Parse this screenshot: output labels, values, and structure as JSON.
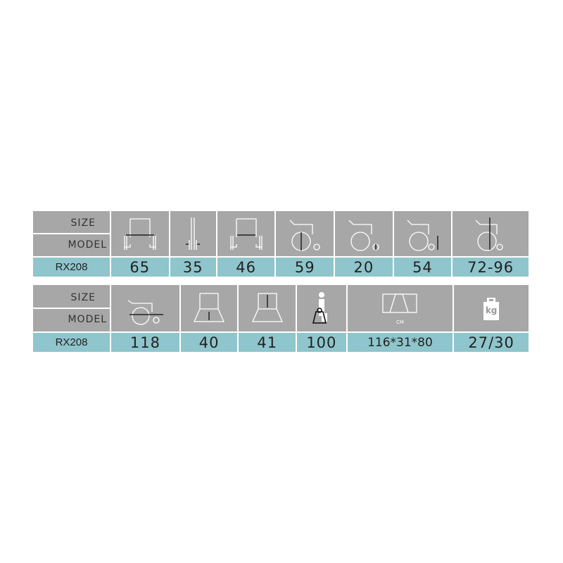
{
  "colors": {
    "header_bg": "#a7a7a7",
    "value_bg": "#8fc5cc",
    "icon": "#ffffff"
  },
  "table1": {
    "size_label": "SIZE",
    "model_label": "MODEL",
    "model": "RX208",
    "columns": [
      {
        "icon": "overall-width-icon",
        "value": "65"
      },
      {
        "icon": "folded-width-icon",
        "value": "35"
      },
      {
        "icon": "seat-width-icon",
        "value": "46"
      },
      {
        "icon": "rear-wheel-diameter-icon",
        "value": "59"
      },
      {
        "icon": "front-wheel-diameter-icon",
        "value": "20"
      },
      {
        "icon": "seat-height-icon",
        "value": "54"
      },
      {
        "icon": "overall-height-icon",
        "value": "72-96"
      }
    ]
  },
  "table2": {
    "size_label": "SIZE",
    "model_label": "MODEL",
    "model": "RX208",
    "columns": [
      {
        "icon": "overall-length-icon",
        "value": "118"
      },
      {
        "icon": "seat-depth-icon",
        "value": "40"
      },
      {
        "icon": "backrest-height-icon",
        "value": "41"
      },
      {
        "icon": "max-load-icon",
        "value": "100"
      },
      {
        "icon": "package-size-icon",
        "value": "116*31*80",
        "unit": "CM"
      },
      {
        "icon": "weight-icon",
        "value": "27/30",
        "icon_text": "kg"
      }
    ]
  }
}
